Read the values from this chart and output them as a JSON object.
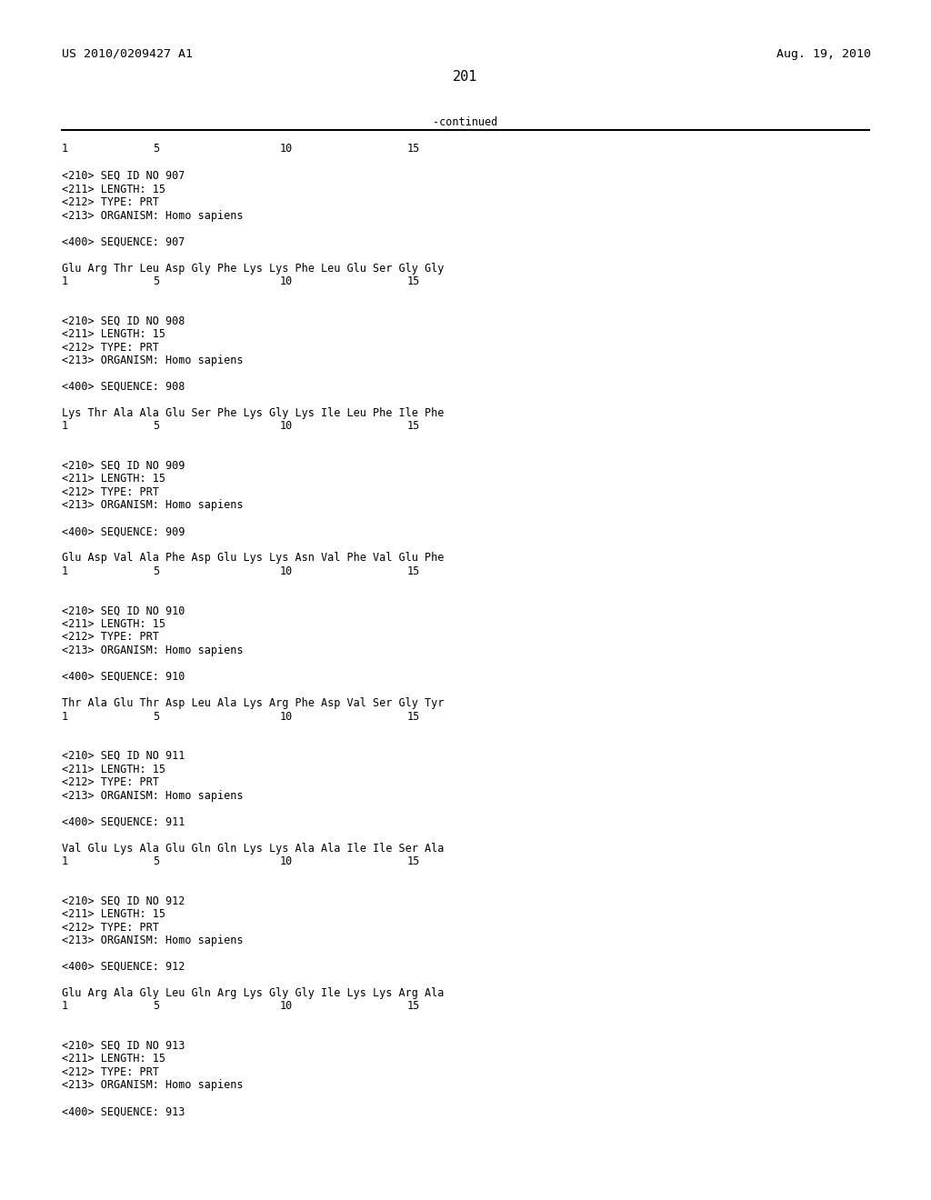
{
  "header_left": "US 2010/0209427 A1",
  "header_right": "Aug. 19, 2010",
  "page_number": "201",
  "continued_text": "-continued",
  "background_color": "#ffffff",
  "text_color": "#000000",
  "font_size_header": 9.5,
  "font_size_body": 8.5,
  "font_size_page": 11,
  "body_lines": [
    "<210> SEQ ID NO 907",
    "<211> LENGTH: 15",
    "<212> TYPE: PRT",
    "<213> ORGANISM: Homo sapiens",
    "",
    "<400> SEQUENCE: 907",
    "",
    "Glu Arg Thr Leu Asp Gly Phe Lys Lys Phe Leu Glu Ser Gly Gly",
    "1               5                   10                  15",
    "",
    "",
    "<210> SEQ ID NO 908",
    "<211> LENGTH: 15",
    "<212> TYPE: PRT",
    "<213> ORGANISM: Homo sapiens",
    "",
    "<400> SEQUENCE: 908",
    "",
    "Lys Thr Ala Ala Glu Ser Phe Lys Gly Lys Ile Leu Phe Ile Phe",
    "1               5                   10                  15",
    "",
    "",
    "<210> SEQ ID NO 909",
    "<211> LENGTH: 15",
    "<212> TYPE: PRT",
    "<213> ORGANISM: Homo sapiens",
    "",
    "<400> SEQUENCE: 909",
    "",
    "Glu Asp Val Ala Phe Asp Glu Lys Lys Asn Val Phe Val Glu Phe",
    "1               5                   10                  15",
    "",
    "",
    "<210> SEQ ID NO 910",
    "<211> LENGTH: 15",
    "<212> TYPE: PRT",
    "<213> ORGANISM: Homo sapiens",
    "",
    "<400> SEQUENCE: 910",
    "",
    "Thr Ala Glu Thr Asp Leu Ala Lys Arg Phe Asp Val Ser Gly Tyr",
    "1               5                   10                  15",
    "",
    "",
    "<210> SEQ ID NO 911",
    "<211> LENGTH: 15",
    "<212> TYPE: PRT",
    "<213> ORGANISM: Homo sapiens",
    "",
    "<400> SEQUENCE: 911",
    "",
    "Val Glu Lys Ala Glu Gln Gln Lys Lys Ala Ala Ile Ile Ser Ala",
    "1               5                   10                  15",
    "",
    "",
    "<210> SEQ ID NO 912",
    "<211> LENGTH: 15",
    "<212> TYPE: PRT",
    "<213> ORGANISM: Homo sapiens",
    "",
    "<400> SEQUENCE: 912",
    "",
    "Glu Arg Ala Gly Leu Gln Arg Lys Gly Gly Ile Lys Lys Arg Ala",
    "1               5                   10                  15",
    "",
    "",
    "<210> SEQ ID NO 913",
    "<211> LENGTH: 15",
    "<212> TYPE: PRT",
    "<213> ORGANISM: Homo sapiens",
    "",
    "<400> SEQUENCE: 913"
  ]
}
